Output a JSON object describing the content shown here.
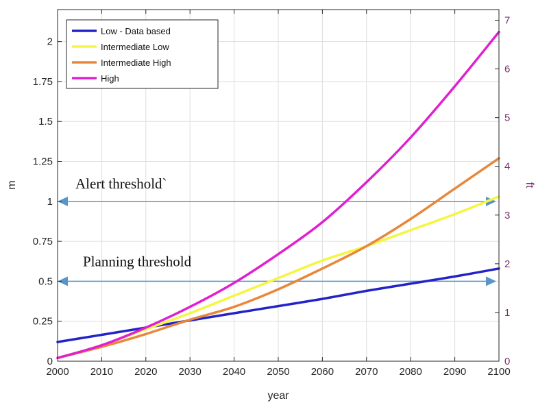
{
  "chart_data": {
    "type": "line",
    "xlabel": "year",
    "ylabel": "m",
    "ylabel_right": "ft",
    "xlim": [
      2000,
      2100
    ],
    "ylim": [
      0,
      2.2
    ],
    "ylim_right": [
      0,
      7.218
    ],
    "x_ticks": [
      "2000",
      "2010",
      "2020",
      "2030",
      "2040",
      "2050",
      "2060",
      "2070",
      "2080",
      "2090",
      "2100"
    ],
    "y_ticks": [
      "0",
      "0.25",
      "0.5",
      "0.75",
      "1",
      "1.25",
      "1.5",
      "1.75",
      "2"
    ],
    "y_ticks_right": [
      "0",
      "1",
      "2",
      "3",
      "4",
      "5",
      "6",
      "7"
    ],
    "grid": true,
    "legend_position": "top-left",
    "x": [
      2000,
      2010,
      2020,
      2030,
      2040,
      2050,
      2060,
      2070,
      2080,
      2090,
      2100
    ],
    "series": [
      {
        "name": "Low - Data based",
        "color": "#2323c8",
        "values": [
          0.12,
          0.165,
          0.21,
          0.255,
          0.3,
          0.345,
          0.39,
          0.44,
          0.485,
          0.53,
          0.58
        ]
      },
      {
        "name": "Intermediate Low",
        "color": "#f5f542",
        "values": [
          0.02,
          0.1,
          0.2,
          0.3,
          0.41,
          0.52,
          0.63,
          0.72,
          0.82,
          0.92,
          1.03
        ]
      },
      {
        "name": "Intermediate High",
        "color": "#e8873a",
        "values": [
          0.02,
          0.09,
          0.17,
          0.26,
          0.34,
          0.45,
          0.58,
          0.72,
          0.89,
          1.08,
          1.27
        ]
      },
      {
        "name": "High",
        "color": "#e020d0",
        "values": [
          0.02,
          0.1,
          0.21,
          0.34,
          0.49,
          0.67,
          0.87,
          1.12,
          1.4,
          1.72,
          2.06
        ]
      }
    ],
    "thresholds": [
      {
        "label": "Alert threshold`",
        "value": 1,
        "color": "#5a95c8"
      },
      {
        "label": "Planning threshold",
        "value": 0.5,
        "color": "#5a95c8"
      }
    ]
  }
}
